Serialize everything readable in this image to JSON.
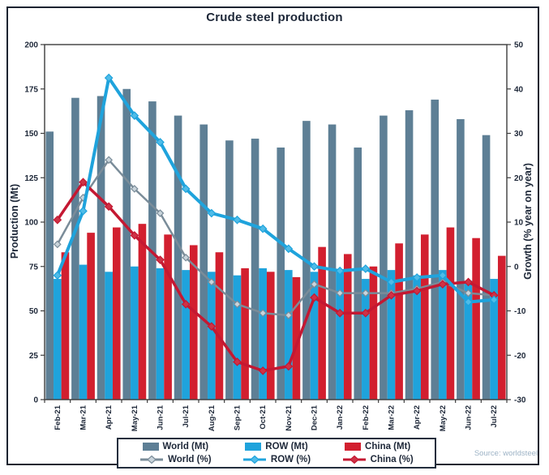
{
  "title": "Crude steel production",
  "source": "Source: worldsteel",
  "axes": {
    "left": {
      "label": "Production (Mt)",
      "ticks": [
        0,
        25,
        50,
        75,
        100,
        125,
        150,
        175,
        200
      ]
    },
    "right": {
      "label": "Growth (% year on year)",
      "ticks": [
        -30,
        -20,
        -10,
        0,
        10,
        20,
        30,
        40,
        50
      ]
    }
  },
  "colors": {
    "world_bar": "#5E7F95",
    "row_bar": "#1FA3DC",
    "china_bar": "#D21F2F",
    "world_line": "#7A8C99",
    "row_line": "#1FA3DC",
    "china_line": "#C41832",
    "frame": "#1A2330",
    "axis": "#3C3C3C",
    "text": "#1D2738",
    "source_text": "#9DB3C6"
  },
  "legend": {
    "items": [
      {
        "label": "World (Mt)",
        "type": "bar",
        "color": "#5E7F95"
      },
      {
        "label": "ROW (Mt)",
        "type": "bar",
        "color": "#1FA3DC"
      },
      {
        "label": "China (Mt)",
        "type": "bar",
        "color": "#D21F2F"
      },
      {
        "label": "World (%)",
        "type": "line",
        "color": "#7A8C99",
        "marker_fill": "#C9D4DB"
      },
      {
        "label": "ROW (%)",
        "type": "line",
        "color": "#1FA3DC",
        "marker_fill": "#4FBCE8"
      },
      {
        "label": "China (%)",
        "type": "line",
        "color": "#C41832",
        "marker_fill": "#CE3246"
      }
    ]
  },
  "chart_data": {
    "type": "bar+line combo",
    "title": "Crude steel production",
    "categories": [
      "Feb-21",
      "Mar-21",
      "Apr-21",
      "May-21",
      "Jun-21",
      "Jul-21",
      "Aug-21",
      "Sep-21",
      "Oct-21",
      "Nov-21",
      "Dec-21",
      "Jan-22",
      "Feb-22",
      "Mar-22",
      "Apr-22",
      "May-22",
      "Jun-22",
      "Jul-22"
    ],
    "bar_series": [
      {
        "name": "World (Mt)",
        "axis": "left",
        "color": "#5E7F95",
        "values": [
          151,
          170,
          171,
          175,
          168,
          160,
          155,
          146,
          147,
          142,
          157,
          155,
          142,
          160,
          163,
          169,
          158,
          149
        ]
      },
      {
        "name": "ROW (Mt)",
        "axis": "left",
        "color": "#1FA3DC",
        "values": [
          68,
          76,
          72,
          75,
          74,
          73,
          72,
          70,
          74,
          73,
          72,
          73,
          68,
          73,
          70,
          73,
          67,
          68
        ]
      },
      {
        "name": "China (Mt)",
        "axis": "left",
        "color": "#D21F2F",
        "values": [
          83,
          94,
          97,
          99,
          93,
          87,
          83,
          74,
          72,
          69,
          86,
          82,
          75,
          88,
          93,
          97,
          91,
          81
        ]
      }
    ],
    "line_series": [
      {
        "name": "World (%)",
        "axis": "right",
        "color": "#7A8C99",
        "marker_fill": "#C9D4DB",
        "stroke_width": 2.5,
        "marker_size": 4,
        "values": [
          5,
          15.5,
          24,
          17.5,
          12,
          2,
          -3.5,
          -8.5,
          -10.5,
          -11,
          -4,
          -6,
          -6,
          -6,
          -5,
          -3.5,
          -6,
          -6.5
        ]
      },
      {
        "name": "China (%)",
        "axis": "right",
        "color": "#C41832",
        "marker_fill": "#CE3246",
        "stroke_width": 3.5,
        "marker_size": 4.5,
        "values": [
          10.5,
          19,
          13.5,
          7,
          1.5,
          -8.5,
          -13.5,
          -21.5,
          -23.5,
          -22.5,
          -7,
          -10.5,
          -10.5,
          -6.5,
          -5.5,
          -4,
          -3.5,
          -6.5
        ]
      },
      {
        "name": "ROW (%)",
        "axis": "right",
        "color": "#1FA3DC",
        "marker_fill": "#4FBCE8",
        "stroke_width": 4,
        "marker_size": 4.5,
        "values": [
          -2,
          12.5,
          42.5,
          34,
          28,
          17.5,
          12,
          10.5,
          8.5,
          4,
          0,
          -1,
          -0.5,
          -3.5,
          -2.5,
          -2,
          -8,
          -7.5
        ]
      }
    ],
    "ylabel_left": "Production (Mt)",
    "ylabel_right": "Growth (% year on year)",
    "ylim_left": [
      0,
      200
    ],
    "ylim_right": [
      -30,
      50
    ],
    "grid": false,
    "legend_position": "bottom"
  }
}
